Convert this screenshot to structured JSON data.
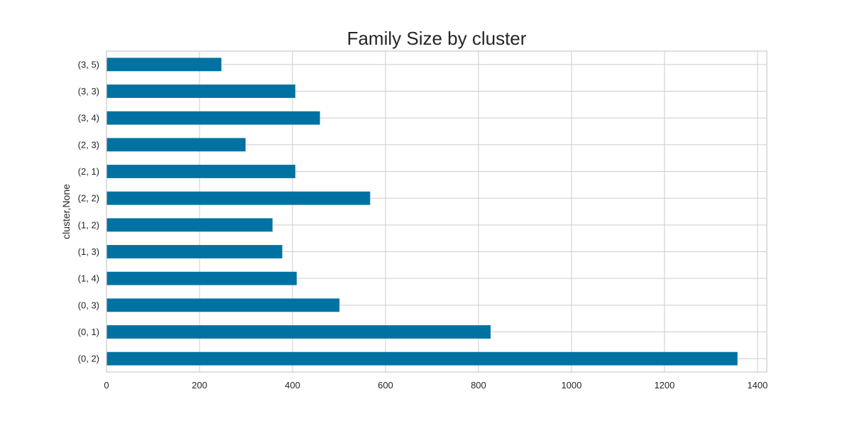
{
  "chart_data": {
    "type": "bar",
    "orientation": "horizontal",
    "title": "Family Size by cluster",
    "xlabel": "",
    "ylabel": "cluster,None",
    "categories": [
      "(0, 2)",
      "(0, 1)",
      "(0, 3)",
      "(1, 4)",
      "(1, 3)",
      "(1, 2)",
      "(2, 2)",
      "(2, 1)",
      "(2, 3)",
      "(3, 4)",
      "(3, 3)",
      "(3, 5)"
    ],
    "values": [
      1357,
      826,
      501,
      409,
      378,
      357,
      567,
      406,
      299,
      459,
      406,
      247
    ],
    "xlim": [
      0,
      1420
    ],
    "xticks": [
      0,
      200,
      400,
      600,
      800,
      1000,
      1200,
      1400
    ],
    "grid": true,
    "bar_color": "#0072a2",
    "grid_color": "#cccccc"
  }
}
